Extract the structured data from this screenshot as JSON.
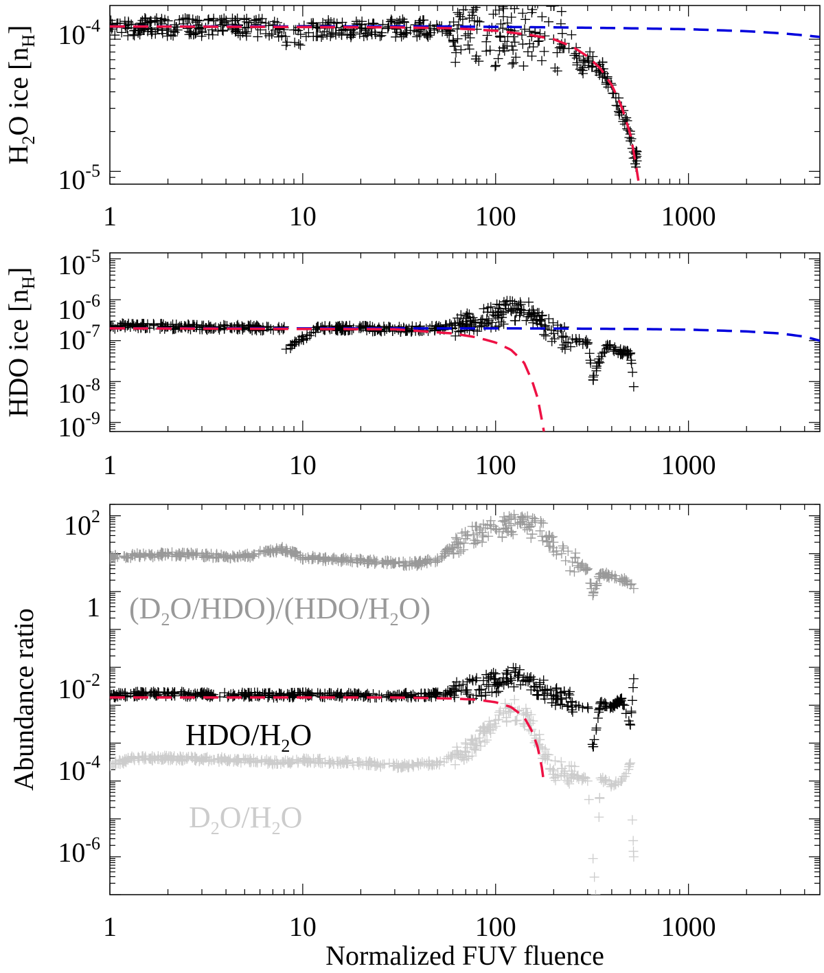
{
  "chart_data": [
    {
      "type": "scatter",
      "x_scale": "log",
      "y_scale": "log",
      "xlim": [
        1,
        4800
      ],
      "ylim": [
        8e-06,
        0.00018
      ],
      "x_tick_labels": [
        "1",
        "10",
        "100",
        "1000"
      ],
      "y_tick_labels": [
        {
          "base": "10",
          "exp": "-4"
        },
        {
          "base": "10",
          "exp": "-5"
        }
      ],
      "ylabel": {
        "pre": "H",
        "sub": "2",
        "mid": "O ice [n",
        "sub2": "H",
        "post": "]"
      },
      "scatter_color": "#000000",
      "scatter_x": [
        1,
        1.5,
        2,
        3,
        5,
        8,
        8.3,
        12,
        20,
        30,
        50,
        80,
        100,
        120,
        150,
        160,
        170,
        180,
        200,
        220,
        240,
        260,
        280,
        300,
        320,
        350,
        380,
        400,
        420,
        450,
        480,
        500,
        520,
        540
      ],
      "scatter_y": [
        0.000125,
        0.000124,
        0.000124,
        0.000123,
        0.000123,
        0.000122,
        9.5e-05,
        0.000122,
        0.000121,
        0.000121,
        0.00012,
        0.000119,
        0.000118,
        0.000117,
        0.000115,
        0.000113,
        0.00011,
        0.000106,
        0.0001,
        9.2e-05,
        8.5e-05,
        7.8e-05,
        5.8e-05,
        7.2e-05,
        6.6e-05,
        6e-05,
        5.2e-05,
        4.5e-05,
        3.6e-05,
        2.8e-05,
        2.1e-05,
        1.7e-05,
        1.4e-05,
        1.2e-05
      ],
      "lines": [
        {
          "color": "#0000dd",
          "style": "dashed",
          "x": [
            1,
            50,
            100,
            200,
            500,
            1000,
            2000,
            3000,
            4000,
            4800
          ],
          "y": [
            0.000125,
            0.000125,
            0.000124,
            0.000123,
            0.000121,
            0.000119,
            0.000115,
            0.000111,
            0.000107,
            0.000104
          ]
        },
        {
          "color": "#ee1144",
          "style": "dashed",
          "x": [
            1,
            30,
            60,
            100,
            150,
            200,
            250,
            300,
            350,
            400,
            450,
            500,
            530,
            550
          ],
          "y": [
            0.000125,
            0.000123,
            0.000121,
            0.000116,
            0.000108,
            0.0001,
            8.8e-05,
            7.4e-05,
            6e-05,
            4.5e-05,
            3.1e-05,
            1.9e-05,
            1.2e-05,
            8.5e-06
          ]
        }
      ]
    },
    {
      "type": "scatter",
      "x_scale": "log",
      "y_scale": "log",
      "xlim": [
        1,
        4800
      ],
      "ylim": [
        6e-10,
        1.4e-05
      ],
      "x_tick_labels": [
        "1",
        "10",
        "100",
        "1000"
      ],
      "y_tick_labels": [
        {
          "base": "10",
          "exp": "-5"
        },
        {
          "base": "10",
          "exp": "-6"
        },
        {
          "base": "10",
          "exp": "-7"
        },
        {
          "base": "10",
          "exp": "-8"
        },
        {
          "base": "10",
          "exp": "-9"
        }
      ],
      "ylabel": {
        "pre": "HDO ice [n",
        "sub": "H",
        "post": "]"
      },
      "scatter_color": "#000000",
      "scatter_x": [
        1,
        1.2,
        1.5,
        2,
        3,
        5,
        8,
        8.2,
        12,
        20,
        30,
        50,
        70,
        90,
        100,
        110,
        120,
        130,
        140,
        150,
        160,
        170,
        180,
        200,
        220,
        250,
        300,
        320,
        340,
        380,
        420,
        460,
        500,
        520
      ],
      "scatter_y": [
        2.2e-07,
        2.4e-07,
        2.3e-07,
        2.2e-07,
        2.1e-07,
        2.1e-07,
        2e-07,
        6.2e-08,
        2e-07,
        2e-07,
        1.9e-07,
        2e-07,
        2.6e-07,
        3.4e-07,
        4e-07,
        4.8e-07,
        5.5e-07,
        6e-07,
        5.5e-07,
        4.8e-07,
        4e-07,
        3e-07,
        2.2e-07,
        1.5e-07,
        1.2e-07,
        1.1e-07,
        9e-08,
        1.1e-08,
        2.8e-08,
        8e-08,
        6e-08,
        5e-08,
        5e-08,
        7.5e-09
      ],
      "lines": [
        {
          "color": "#0000dd",
          "style": "dashed",
          "x": [
            1,
            50,
            100,
            200,
            500,
            1000,
            2000,
            3000,
            4000,
            4800
          ],
          "y": [
            2e-07,
            2e-07,
            2e-07,
            1.98e-07,
            1.93e-07,
            1.86e-07,
            1.68e-07,
            1.5e-07,
            1.25e-07,
            1e-07
          ]
        },
        {
          "color": "#ee1144",
          "style": "dashed",
          "x": [
            1,
            30,
            60,
            80,
            100,
            120,
            140,
            155,
            165,
            172,
            176,
            178
          ],
          "y": [
            2e-07,
            1.9e-07,
            1.5e-07,
            1.2e-07,
            9e-08,
            6e-08,
            3e-08,
            1e-08,
            4e-09,
            1.5e-09,
            8e-10,
            6e-10
          ]
        }
      ]
    },
    {
      "type": "scatter",
      "x_scale": "log",
      "y_scale": "log",
      "xlim": [
        1,
        4800
      ],
      "ylim": [
        1e-08,
        200
      ],
      "x_tick_labels": [
        "1",
        "10",
        "100",
        "1000"
      ],
      "y_tick_labels": [
        {
          "base": "10",
          "exp": "2"
        },
        {
          "base": "1",
          "exp": ""
        },
        {
          "base": "10",
          "exp": "-2"
        },
        {
          "base": "10",
          "exp": "-4"
        },
        {
          "base": "10",
          "exp": "-6"
        }
      ],
      "ylabel": "Abundance ratio",
      "xlabel": "Normalized FUV fluence",
      "annotations": [
        {
          "series": "ratio",
          "color": "#999999",
          "parts": [
            "(D",
            "2",
            "O/HDO)/(HDO/H",
            "2",
            "O)"
          ]
        },
        {
          "series": "hdo",
          "color": "#000000",
          "parts": [
            "HDO/H",
            "2",
            "O"
          ]
        },
        {
          "series": "d2o",
          "color": "#cccccc",
          "parts": [
            "D",
            "2",
            "O/H",
            "2",
            "O"
          ]
        }
      ],
      "series": [
        {
          "id": "ratio",
          "color": "#999999",
          "x": [
            1,
            1.3,
            2,
            3,
            5,
            7.8,
            10,
            15,
            20,
            30,
            40,
            50,
            60,
            70,
            80,
            100,
            120,
            130,
            150,
            170,
            200,
            220,
            250,
            300,
            320,
            350,
            400,
            450,
            500,
            520
          ],
          "y": [
            8,
            9,
            9.5,
            9,
            8.5,
            13,
            8,
            7,
            6.5,
            5.5,
            5.5,
            7,
            15,
            25,
            35,
            45,
            55,
            60,
            50,
            40,
            20,
            10,
            6,
            4,
            0.8,
            3,
            2.5,
            2.2,
            1.5,
            1.2
          ]
        },
        {
          "id": "hdo",
          "color": "#000000",
          "x": [
            1,
            1.5,
            2,
            3,
            5,
            8,
            10,
            20,
            30,
            50,
            70,
            90,
            100,
            120,
            130,
            150,
            170,
            200,
            250,
            300,
            320,
            350,
            400,
            450,
            500,
            520
          ],
          "y": [
            0.0018,
            0.002,
            0.002,
            0.0019,
            0.0019,
            0.0018,
            0.0019,
            0.0018,
            0.0018,
            0.0019,
            0.0025,
            0.0035,
            0.004,
            0.005,
            0.0055,
            0.0045,
            0.003,
            0.0018,
            0.0012,
            0.0009,
            8e-05,
            0.0012,
            0.0009,
            0.0015,
            0.0003,
            0.005
          ]
        },
        {
          "id": "d2o",
          "color": "#cccccc",
          "x": [
            1,
            1.3,
            2,
            3,
            5,
            8,
            10,
            20,
            30,
            50,
            70,
            80,
            90,
            100,
            110,
            120,
            130,
            150,
            170,
            200,
            250,
            300,
            330,
            350,
            400,
            450,
            500,
            520
          ],
          "y": [
            2.5e-05,
            4e-05,
            4e-05,
            3.8e-05,
            3.5e-05,
            3e-05,
            3.5e-05,
            3e-05,
            2.5e-05,
            3e-05,
            6e-05,
            0.0001,
            0.0002,
            0.0004,
            0.0006,
            0.0008,
            0.0007,
            0.0004,
            8e-05,
            2e-05,
            1.5e-05,
            1e-05,
            1e-08,
            1.2e-05,
            8e-06,
            1e-05,
            3e-05,
            1e-07
          ]
        }
      ],
      "lines": [
        {
          "color": "#ee1144",
          "style": "dashed",
          "x": [
            1,
            30,
            60,
            80,
            100,
            120,
            140,
            155,
            165,
            172,
            176,
            178
          ],
          "y": [
            0.0016,
            0.0016,
            0.0015,
            0.0014,
            0.0012,
            0.0009,
            0.0005,
            0.0002,
            8e-05,
            3e-05,
            1.5e-05,
            9e-06
          ]
        }
      ]
    }
  ]
}
